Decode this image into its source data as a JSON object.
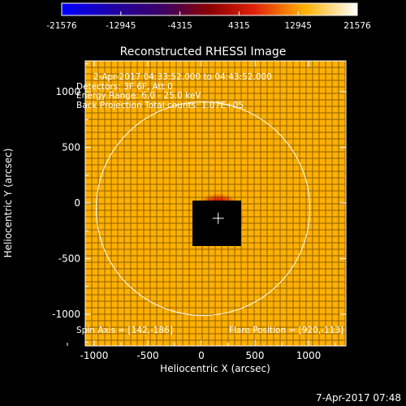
{
  "colorbar": {
    "tick_labels": [
      "-21576",
      "-12945",
      "-4315",
      "4315",
      "12945",
      "21576"
    ],
    "tick_values": [
      -21576,
      -12945,
      -4315,
      4315,
      12945,
      21576
    ],
    "range": [
      -21576,
      21576
    ]
  },
  "plot": {
    "title": "Reconstructed RHESSI Image",
    "annotations": [
      "2-Apr-2017 04:33:52.000 to 04:43:52.000",
      "Detectors: 3F 6F, Att 0",
      "Energy Range: 6.0 - 25.0 keV",
      "Back Projection   Total counts: 1.07E+05"
    ],
    "footer_left": "Spin Axis = [142,-186]",
    "footer_right": "Flare Position = [920,-113]",
    "xlabel": "Heliocentric X (arcsec)",
    "ylabel": "Heliocentric Y (arcsec)",
    "x_tick_labels": [
      "-1000",
      "-500",
      "0",
      "500",
      "1000"
    ],
    "x_tick_values": [
      -1000,
      -500,
      0,
      500,
      1000
    ],
    "y_tick_labels": [
      "1000",
      "500",
      "0",
      "-500",
      "-1000"
    ],
    "y_tick_values": [
      1000,
      500,
      0,
      -500,
      -1000
    ],
    "xlim": [
      -1300,
      1300
    ],
    "ylim": [
      -1300,
      1300
    ],
    "solar_radius_arcsec": 960,
    "spin_axis": [
      142,
      -186
    ],
    "flare_position": [
      920,
      -113
    ],
    "center_marker": [
      142,
      140
    ]
  },
  "timestamp": "7-Apr-2017 07:48"
}
